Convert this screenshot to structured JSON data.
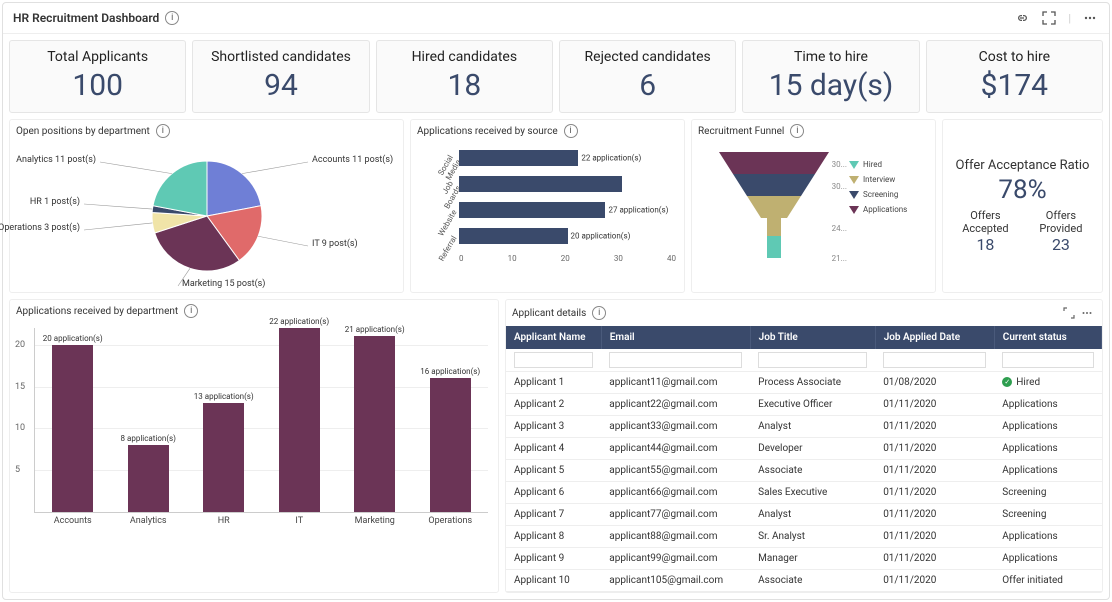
{
  "header": {
    "title": "HR Recruitment Dashboard"
  },
  "kpis": [
    {
      "label": "Total Applicants",
      "value": "100"
    },
    {
      "label": "Shortlisted candidates",
      "value": "94"
    },
    {
      "label": "Hired candidates",
      "value": "18"
    },
    {
      "label": "Rejected candidates",
      "value": "6"
    },
    {
      "label": "Time to hire",
      "value": "15 day(s)"
    },
    {
      "label": "Cost to hire",
      "value": "$174"
    }
  ],
  "pie": {
    "title": "Open positions by department",
    "slices": [
      {
        "label": "Accounts 11 post(s)",
        "value": 11,
        "color": "#6f7fd6"
      },
      {
        "label": "IT 9 post(s)",
        "value": 9,
        "color": "#e06a6a"
      },
      {
        "label": "Marketing 15 post(s)",
        "value": 15,
        "color": "#6b3456"
      },
      {
        "label": "Operations 3 post(s)",
        "value": 3,
        "color": "#f0e4a8"
      },
      {
        "label": "HR 1 post(s)",
        "value": 1,
        "color": "#3a4a6b"
      },
      {
        "label": "Analytics 11 post(s)",
        "value": 11,
        "color": "#5fc9b4"
      }
    ],
    "radius": 55,
    "label_fontsize": 9
  },
  "hbar": {
    "title": "Applications received by source",
    "categories": [
      "Social Media",
      "Job Boards",
      "Website",
      "Referral"
    ],
    "values": [
      22,
      30,
      27,
      20
    ],
    "value_labels": [
      "22 application(s)",
      "",
      "27 application(s)",
      "20 application(s)"
    ],
    "xmax": 40,
    "xtick_step": 10,
    "bar_color": "#3a4a6b",
    "label_fontsize": 8
  },
  "funnel": {
    "title": "Recruitment Funnel",
    "stages": [
      {
        "label": "Applications",
        "value": "30...",
        "color": "#6b3456"
      },
      {
        "label": "Screening",
        "value": "30...",
        "color": "#3a4a6b"
      },
      {
        "label": "Interview",
        "value": "24...",
        "color": "#bfb071"
      },
      {
        "label": "Hired",
        "value": "21...",
        "color": "#5fc9b4"
      }
    ],
    "legend_order": [
      "Hired",
      "Interview",
      "Screening",
      "Applications"
    ]
  },
  "offer": {
    "title": "Offer Acceptance Ratio",
    "ratio": "78%",
    "accepted_label": "Offers Accepted",
    "accepted_value": "18",
    "provided_label": "Offers Provided",
    "provided_value": "23"
  },
  "vbar": {
    "title": "Applications received by department",
    "categories": [
      "Accounts",
      "Analytics",
      "HR",
      "IT",
      "Marketing",
      "Operations"
    ],
    "values": [
      20,
      8,
      13,
      22,
      21,
      16
    ],
    "value_labels": [
      "20 application(s)",
      "8 application(s)",
      "13 application(s)",
      "22 application(s)",
      "21 application(s)",
      "16 application(s)"
    ],
    "ymax": 22,
    "yticks": [
      5,
      10,
      15,
      20
    ],
    "bar_color": "#6b3456",
    "bar_width_pct": 9
  },
  "table": {
    "title": "Applicant details",
    "columns": [
      "Applicant Name",
      "Email",
      "Job Title",
      "Job Applied Date",
      "Current status"
    ],
    "rows": [
      [
        "Applicant 1",
        "applicant11@gmail.com",
        "Process Associate",
        "01/08/2020",
        "Hired"
      ],
      [
        "Applicant 2",
        "applicant22@gmail.com",
        "Executive Officer",
        "01/11/2020",
        "Applications"
      ],
      [
        "Applicant 3",
        "applicant33@gmail.com",
        "Analyst",
        "01/11/2020",
        "Applications"
      ],
      [
        "Applicant 4",
        "applicant44@gmail.com",
        "Developer",
        "01/11/2020",
        "Applications"
      ],
      [
        "Applicant 5",
        "applicant55@gmail.com",
        "Associate",
        "01/11/2020",
        "Applications"
      ],
      [
        "Applicant 6",
        "applicant66@gmail.com",
        "Sales Executive",
        "01/11/2020",
        "Screening"
      ],
      [
        "Applicant 7",
        "applicant77@gmail.com",
        "Analyst",
        "01/11/2020",
        "Screening"
      ],
      [
        "Applicant 8",
        "applicant88@gmail.com",
        "Sr. Analyst",
        "01/11/2020",
        "Applications"
      ],
      [
        "Applicant 9",
        "applicant99@gmail.com",
        "Manager",
        "01/11/2020",
        "Applications"
      ],
      [
        "Applicant 10",
        "applicant105@gmail.com",
        "Associate",
        "01/11/2020",
        "Offer initiated"
      ]
    ],
    "hired_status_value": "Hired",
    "column_widths_pct": [
      16,
      25,
      21,
      20,
      18
    ]
  },
  "colors": {
    "kpi_value": "#3a4a6b",
    "panel_border": "#eeeeee"
  }
}
